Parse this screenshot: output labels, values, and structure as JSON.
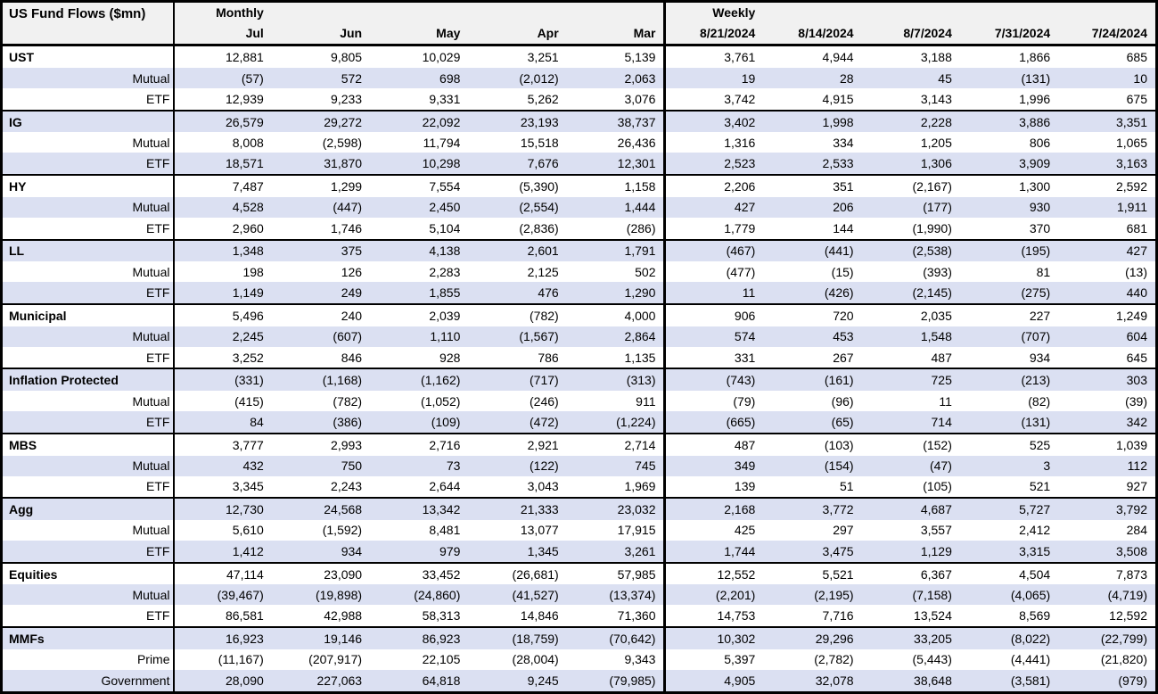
{
  "chart_data": {
    "type": "table",
    "title": "US Fund Flows ($mn)",
    "negative_format": "parentheses",
    "column_groups": [
      {
        "label": "Monthly",
        "columns": [
          "Jul",
          "Jun",
          "May",
          "Apr",
          "Mar"
        ]
      },
      {
        "label": "Weekly",
        "columns": [
          "8/21/2024",
          "8/14/2024",
          "8/7/2024",
          "7/31/2024",
          "7/24/2024"
        ]
      }
    ],
    "rows": [
      {
        "label": "UST",
        "bold": true,
        "values": [
          "12,881",
          "9,805",
          "10,029",
          "3,251",
          "5,139",
          "3,761",
          "4,944",
          "3,188",
          "1,866",
          "685"
        ]
      },
      {
        "label": "Mutual",
        "bold": false,
        "values": [
          "(57)",
          "572",
          "698",
          "(2,012)",
          "2,063",
          "19",
          "28",
          "45",
          "(131)",
          "10"
        ]
      },
      {
        "label": "ETF",
        "bold": false,
        "values": [
          "12,939",
          "9,233",
          "9,331",
          "5,262",
          "3,076",
          "3,742",
          "4,915",
          "3,143",
          "1,996",
          "675"
        ]
      },
      {
        "label": "IG",
        "bold": true,
        "values": [
          "26,579",
          "29,272",
          "22,092",
          "23,193",
          "38,737",
          "3,402",
          "1,998",
          "2,228",
          "3,886",
          "3,351"
        ]
      },
      {
        "label": "Mutual",
        "bold": false,
        "values": [
          "8,008",
          "(2,598)",
          "11,794",
          "15,518",
          "26,436",
          "1,316",
          "334",
          "1,205",
          "806",
          "1,065"
        ]
      },
      {
        "label": "ETF",
        "bold": false,
        "values": [
          "18,571",
          "31,870",
          "10,298",
          "7,676",
          "12,301",
          "2,523",
          "2,533",
          "1,306",
          "3,909",
          "3,163"
        ]
      },
      {
        "label": "HY",
        "bold": true,
        "values": [
          "7,487",
          "1,299",
          "7,554",
          "(5,390)",
          "1,158",
          "2,206",
          "351",
          "(2,167)",
          "1,300",
          "2,592"
        ]
      },
      {
        "label": "Mutual",
        "bold": false,
        "values": [
          "4,528",
          "(447)",
          "2,450",
          "(2,554)",
          "1,444",
          "427",
          "206",
          "(177)",
          "930",
          "1,911"
        ]
      },
      {
        "label": "ETF",
        "bold": false,
        "values": [
          "2,960",
          "1,746",
          "5,104",
          "(2,836)",
          "(286)",
          "1,779",
          "144",
          "(1,990)",
          "370",
          "681"
        ]
      },
      {
        "label": "LL",
        "bold": true,
        "values": [
          "1,348",
          "375",
          "4,138",
          "2,601",
          "1,791",
          "(467)",
          "(441)",
          "(2,538)",
          "(195)",
          "427"
        ]
      },
      {
        "label": "Mutual",
        "bold": false,
        "values": [
          "198",
          "126",
          "2,283",
          "2,125",
          "502",
          "(477)",
          "(15)",
          "(393)",
          "81",
          "(13)"
        ]
      },
      {
        "label": "ETF",
        "bold": false,
        "values": [
          "1,149",
          "249",
          "1,855",
          "476",
          "1,290",
          "11",
          "(426)",
          "(2,145)",
          "(275)",
          "440"
        ]
      },
      {
        "label": "Municipal",
        "bold": true,
        "values": [
          "5,496",
          "240",
          "2,039",
          "(782)",
          "4,000",
          "906",
          "720",
          "2,035",
          "227",
          "1,249"
        ]
      },
      {
        "label": "Mutual",
        "bold": false,
        "values": [
          "2,245",
          "(607)",
          "1,110",
          "(1,567)",
          "2,864",
          "574",
          "453",
          "1,548",
          "(707)",
          "604"
        ]
      },
      {
        "label": "ETF",
        "bold": false,
        "values": [
          "3,252",
          "846",
          "928",
          "786",
          "1,135",
          "331",
          "267",
          "487",
          "934",
          "645"
        ]
      },
      {
        "label": "Inflation Protected",
        "bold": true,
        "values": [
          "(331)",
          "(1,168)",
          "(1,162)",
          "(717)",
          "(313)",
          "(743)",
          "(161)",
          "725",
          "(213)",
          "303"
        ]
      },
      {
        "label": "Mutual",
        "bold": false,
        "values": [
          "(415)",
          "(782)",
          "(1,052)",
          "(246)",
          "911",
          "(79)",
          "(96)",
          "11",
          "(82)",
          "(39)"
        ]
      },
      {
        "label": "ETF",
        "bold": false,
        "values": [
          "84",
          "(386)",
          "(109)",
          "(472)",
          "(1,224)",
          "(665)",
          "(65)",
          "714",
          "(131)",
          "342"
        ]
      },
      {
        "label": "MBS",
        "bold": true,
        "values": [
          "3,777",
          "2,993",
          "2,716",
          "2,921",
          "2,714",
          "487",
          "(103)",
          "(152)",
          "525",
          "1,039"
        ]
      },
      {
        "label": "Mutual",
        "bold": false,
        "values": [
          "432",
          "750",
          "73",
          "(122)",
          "745",
          "349",
          "(154)",
          "(47)",
          "3",
          "112"
        ]
      },
      {
        "label": "ETF",
        "bold": false,
        "values": [
          "3,345",
          "2,243",
          "2,644",
          "3,043",
          "1,969",
          "139",
          "51",
          "(105)",
          "521",
          "927"
        ]
      },
      {
        "label": "Agg",
        "bold": true,
        "values": [
          "12,730",
          "24,568",
          "13,342",
          "21,333",
          "23,032",
          "2,168",
          "3,772",
          "4,687",
          "5,727",
          "3,792"
        ]
      },
      {
        "label": "Mutual",
        "bold": false,
        "values": [
          "5,610",
          "(1,592)",
          "8,481",
          "13,077",
          "17,915",
          "425",
          "297",
          "3,557",
          "2,412",
          "284"
        ]
      },
      {
        "label": "ETF",
        "bold": false,
        "values": [
          "1,412",
          "934",
          "979",
          "1,345",
          "3,261",
          "1,744",
          "3,475",
          "1,129",
          "3,315",
          "3,508"
        ]
      },
      {
        "label": "Equities",
        "bold": true,
        "values": [
          "47,114",
          "23,090",
          "33,452",
          "(26,681)",
          "57,985",
          "12,552",
          "5,521",
          "6,367",
          "4,504",
          "7,873"
        ]
      },
      {
        "label": "Mutual",
        "bold": false,
        "values": [
          "(39,467)",
          "(19,898)",
          "(24,860)",
          "(41,527)",
          "(13,374)",
          "(2,201)",
          "(2,195)",
          "(7,158)",
          "(4,065)",
          "(4,719)"
        ]
      },
      {
        "label": "ETF",
        "bold": false,
        "values": [
          "86,581",
          "42,988",
          "58,313",
          "14,846",
          "71,360",
          "14,753",
          "7,716",
          "13,524",
          "8,569",
          "12,592"
        ]
      },
      {
        "label": "MMFs",
        "bold": true,
        "values": [
          "16,923",
          "19,146",
          "86,923",
          "(18,759)",
          "(70,642)",
          "10,302",
          "29,296",
          "33,205",
          "(8,022)",
          "(22,799)"
        ]
      },
      {
        "label": "Prime",
        "bold": false,
        "values": [
          "(11,167)",
          "(207,917)",
          "22,105",
          "(28,004)",
          "9,343",
          "5,397",
          "(2,782)",
          "(5,443)",
          "(4,441)",
          "(21,820)"
        ]
      },
      {
        "label": "Government",
        "bold": false,
        "values": [
          "28,090",
          "227,063",
          "64,818",
          "9,245",
          "(79,985)",
          "4,905",
          "32,078",
          "38,648",
          "(3,581)",
          "(979)"
        ]
      }
    ]
  },
  "colors": {
    "stripe_bg": "#dbe0f2",
    "header_bg": "#f1f1f1",
    "border": "#000000",
    "text": "#000000",
    "row_bg": "#ffffff"
  }
}
